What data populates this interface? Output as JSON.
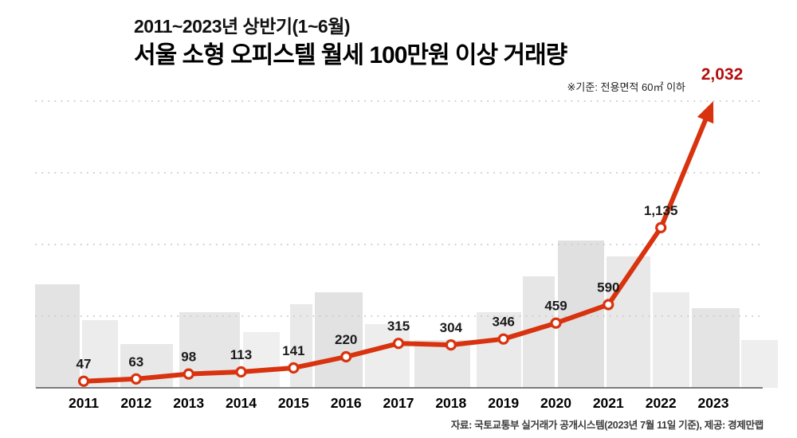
{
  "header": {
    "subtitle": "2011~2023년 상반기(1~6월)",
    "title": "서울 소형 오피스텔 월세 100만원 이상 거래량",
    "note": "※기준: 전용면적 60㎡ 이하"
  },
  "footer": {
    "source": "자료: 국토교통부 실거래가 공개시스템(2023년 7월 11일 기준), 제공: 경제만랩"
  },
  "chart_data": {
    "type": "line",
    "title": "서울 소형 오피스텔 월세 100만원 이상 거래량",
    "subtitle": "2011~2023년 상반기(1~6월)",
    "categories": [
      "2011",
      "2012",
      "2013",
      "2014",
      "2015",
      "2016",
      "2017",
      "2018",
      "2019",
      "2020",
      "2021",
      "2022",
      "2023"
    ],
    "values": [
      47,
      63,
      98,
      113,
      141,
      220,
      315,
      304,
      346,
      459,
      590,
      1135,
      2032
    ],
    "value_labels": [
      "47",
      "63",
      "98",
      "113",
      "141",
      "220",
      "315",
      "304",
      "346",
      "459",
      "590",
      "1,135",
      "2,032"
    ],
    "xlabel": "",
    "ylabel": "",
    "ylim": [
      0,
      2032
    ],
    "grid": "dotted-horizontal",
    "legend": "none",
    "line_color": "#d8330e",
    "highlight_color": "#b50d0d",
    "marker_style": "open-circle",
    "end_marker": "arrow"
  }
}
